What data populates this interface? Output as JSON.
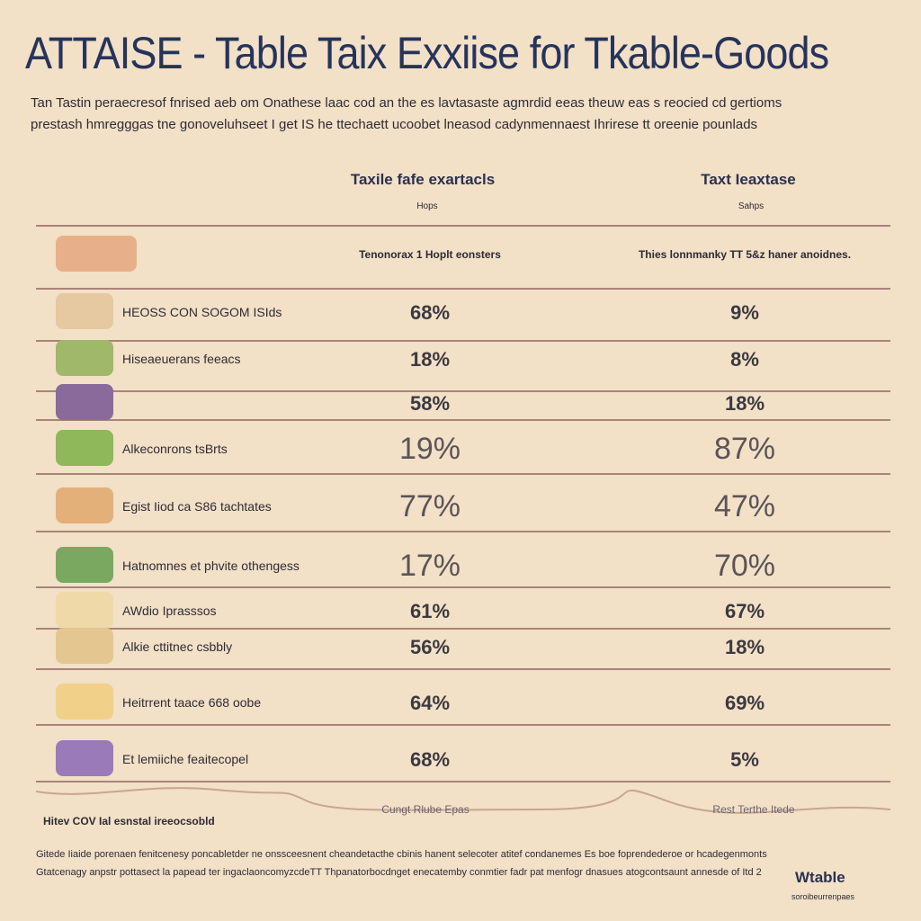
{
  "header": {
    "title": "ATTAISE - Table Taix Exxiise for Tkable-Goods",
    "subtitle": [
      "Tan Tastin peraecresof fnrised aeb om Onathese laac cod an the es lavtasaste agmrdid eeas theuw eas s reocied cd gertioms",
      "prestash hmregggas tne gonoveluhseet I get IS he ttechaett ucoobet lneasod cadynmennaest Ihrirese tt oreenie pounlads"
    ]
  },
  "table": {
    "columns": [
      {
        "title": "Taxile fafe exartacls",
        "sub": "Hops",
        "note": "Tenonorax 1 Hoplt eonsters"
      },
      {
        "title": "Taxt Ieaxtase",
        "sub": "Sahps",
        "note": "Thies lonnmanky TT 5&z haner anoidnes."
      }
    ],
    "rows": [
      [
        "HEOSS CON SOGOM ISIds",
        "68%",
        "9%"
      ],
      [
        "Hiseaeuerans feeacs",
        "18%",
        "8%"
      ],
      [
        "",
        "58%",
        "18%"
      ],
      [
        "Alkeconrons tsBrts",
        "19%",
        "87%"
      ],
      [
        "Egist Iiod ca S86 tachtates",
        "77%",
        "47%"
      ],
      [
        "Hatnomnes et phvite othengess",
        "17%",
        "70%"
      ],
      [
        "AWdio Iprasssos",
        "61%",
        "67%"
      ],
      [
        "Alkie cttitnec csbbly",
        "56%",
        "18%"
      ],
      [
        "Heitrrent taace 668 oobe",
        "64%",
        "69%"
      ],
      [
        "Et lemiiche feaitecopel",
        "68%",
        "5%"
      ]
    ]
  },
  "footer": {
    "left": "Hitev COV Ial esnstal ireeocsobld",
    "mid": "Cungt Rlube Epas",
    "right": "Rest Terthe Itede",
    "notes": [
      "Gitede Iiaide porenaen fenitcenesy poncabletder ne onssceesnent cheandetacthe cbinis hanent selecoter atitef condanemes Es boe foprendederoe or hcadegenmonts",
      "Gtatcenagy anpstr pottasect la papead ter ingaclaoncomyzcdeTT Thpanatorbocdnget enecatemby conmtier fadr pat menfogr dnasues atogcontsaunt annesde of Itd 2"
    ],
    "logo": "Wtable",
    "logo_sub": "soroibeurrenpaes"
  }
}
